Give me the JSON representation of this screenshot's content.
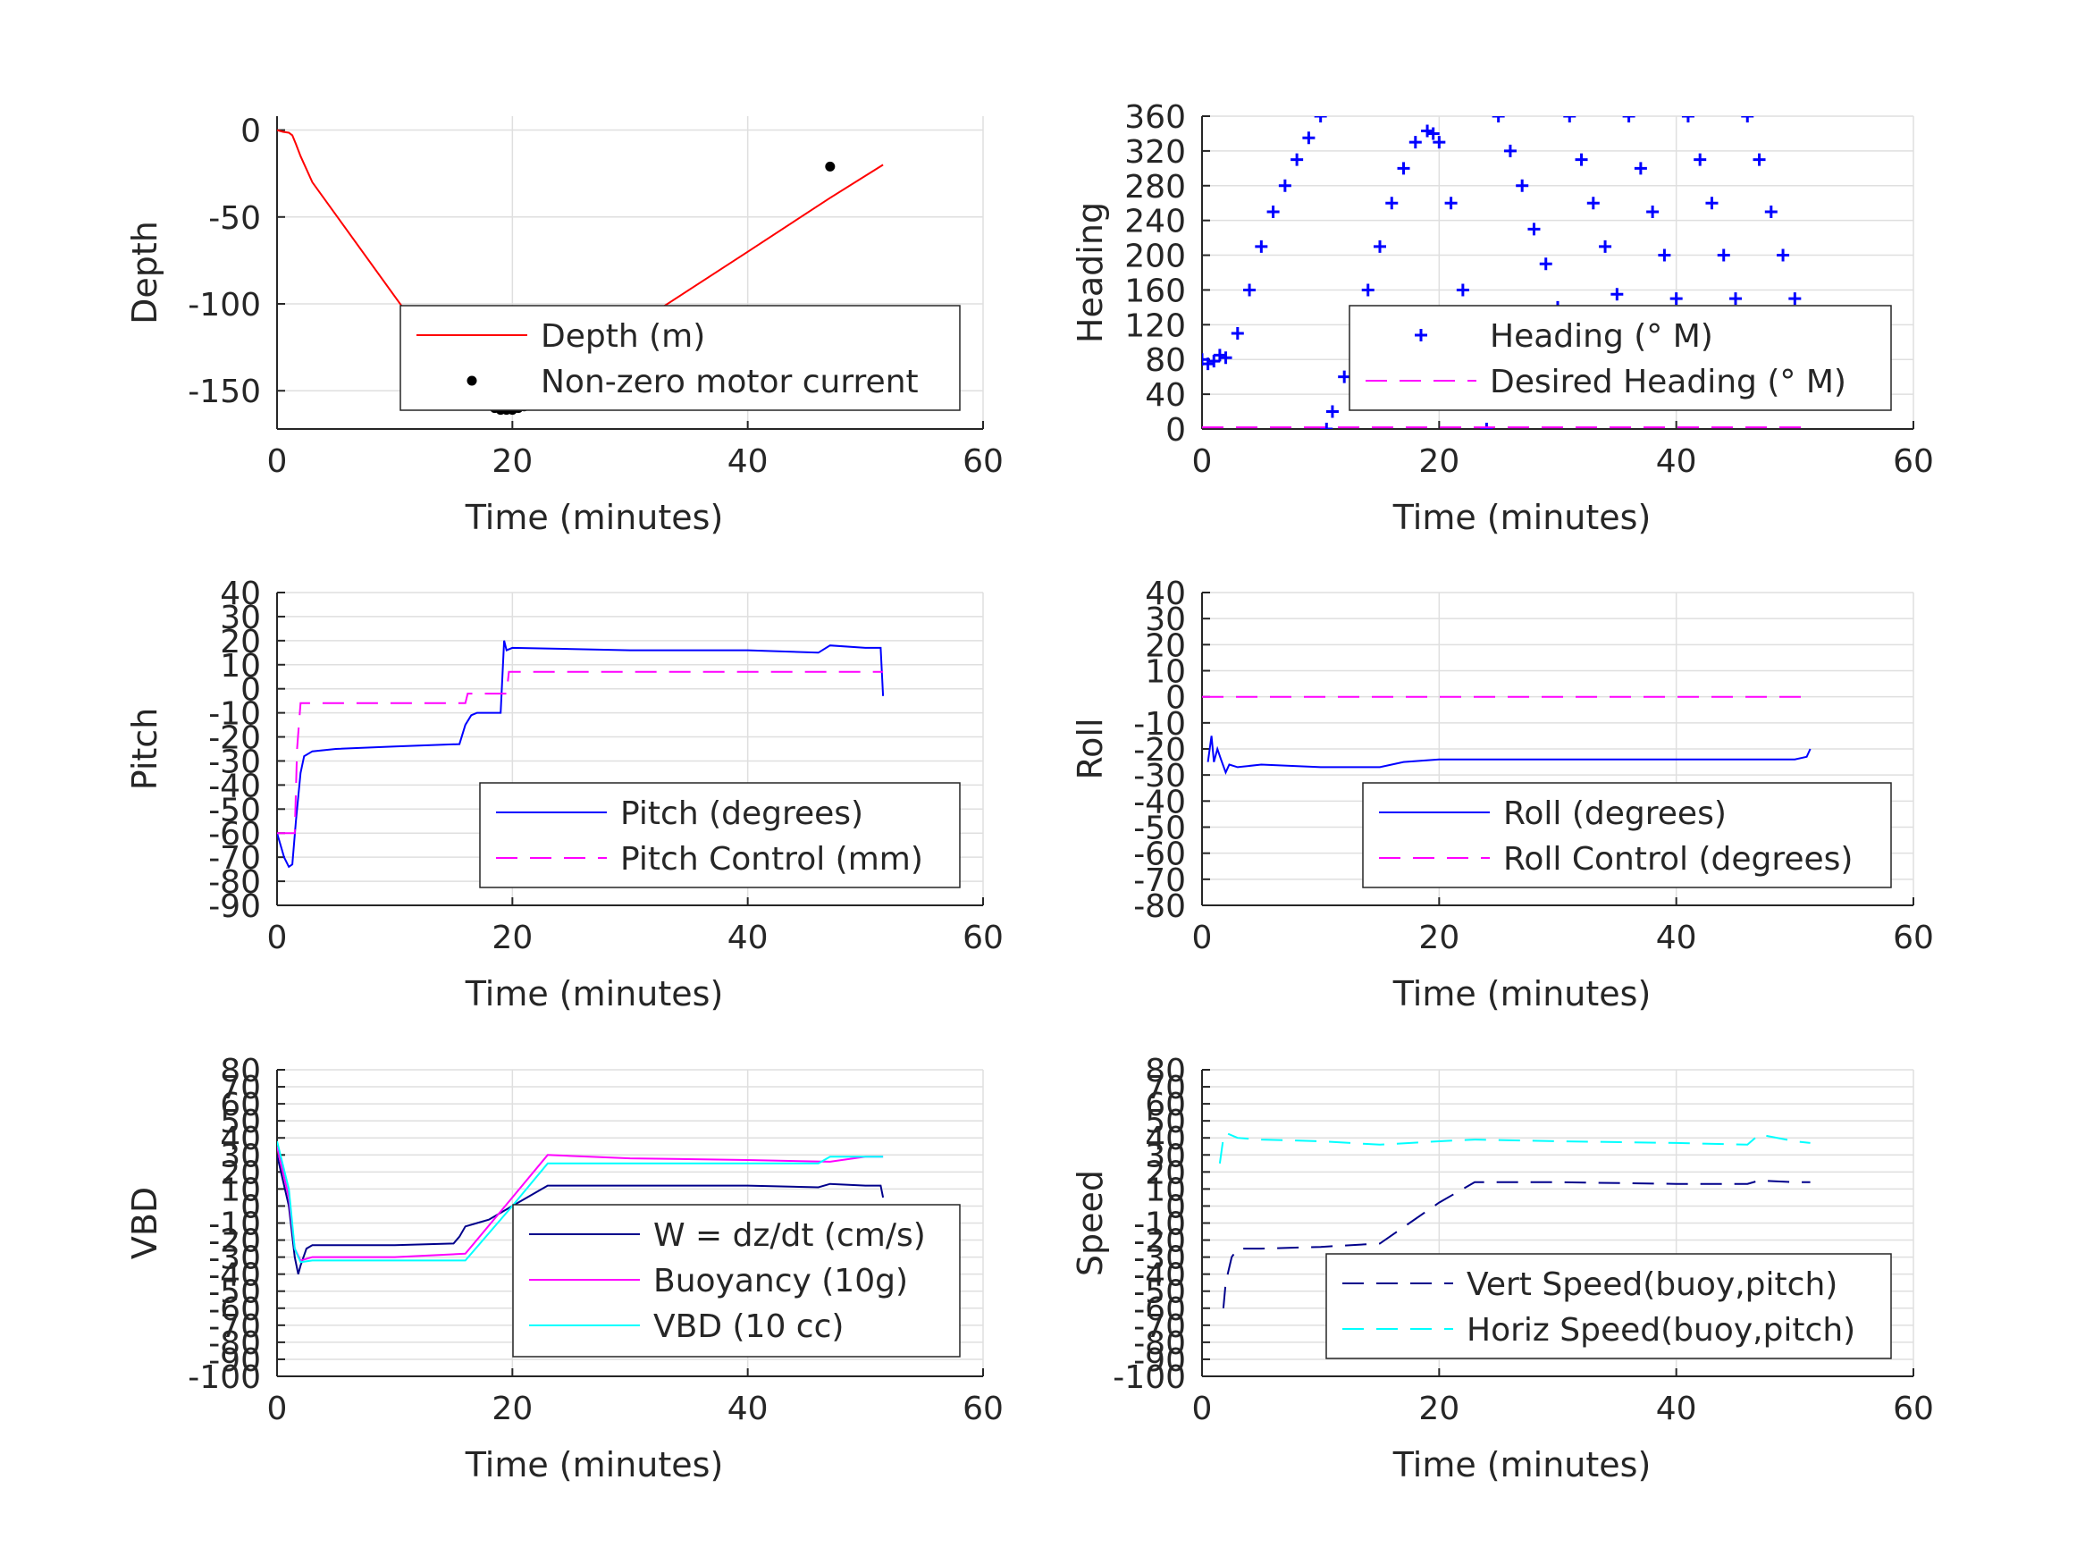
{
  "chart_data": [
    {
      "id": "depth",
      "type": "line",
      "xlabel": "Time (minutes)",
      "ylabel": "Depth",
      "xlim": [
        0,
        60
      ],
      "ylim": [
        -172,
        8
      ],
      "xticks": [
        0,
        20,
        40,
        60
      ],
      "yticks": [
        0,
        -50,
        -100,
        -150
      ],
      "grid": true,
      "legend_position": "center-right",
      "series": [
        {
          "name": "Depth (m)",
          "style": "line",
          "color": "#ff0000",
          "x": [
            0,
            0.5,
            1,
            1.3,
            1.6,
            2,
            3,
            16,
            17,
            18,
            19,
            20,
            21,
            22,
            23,
            30,
            40,
            47,
            51.5
          ],
          "y": [
            0,
            -1,
            -1.5,
            -3,
            -8,
            -15,
            -30,
            -152,
            -156,
            -160,
            -161,
            -161,
            -159,
            -155,
            -150,
            -114,
            -70,
            -39,
            -20
          ]
        },
        {
          "name": "Non-zero motor current",
          "style": "dots",
          "color": "#000000",
          "x": [
            16.5,
            16.8,
            17,
            17.5,
            18,
            18.5,
            19,
            19.5,
            20,
            20.5,
            21,
            21.5,
            22,
            22.5,
            47,
            16.6
          ],
          "y": [
            -153,
            -154,
            -155,
            -157,
            -158,
            -160,
            -161,
            -161,
            -161,
            -160,
            -159,
            -157,
            -155,
            -151,
            -21,
            -144
          ]
        }
      ]
    },
    {
      "id": "heading",
      "type": "scatter",
      "xlabel": "Time (minutes)",
      "ylabel": "Heading",
      "xlim": [
        0,
        60
      ],
      "ylim": [
        0,
        360
      ],
      "xticks": [
        0,
        20,
        40,
        60
      ],
      "yticks": [
        0,
        40,
        80,
        120,
        160,
        200,
        240,
        280,
        320,
        360
      ],
      "grid": true,
      "legend_position": "center-right",
      "series": [
        {
          "name": "Heading (° M)",
          "style": "plus",
          "color": "#0000ff",
          "x": [
            0,
            0.5,
            1,
            1.5,
            2,
            3,
            4,
            5,
            6,
            7,
            8,
            9,
            10,
            10.5,
            11,
            12,
            13,
            14,
            15,
            16,
            17,
            18,
            19,
            19.5,
            20,
            21,
            22,
            23,
            24,
            25,
            26,
            27,
            28,
            29,
            30,
            31,
            32,
            33,
            34,
            35,
            36,
            37,
            38,
            39,
            40,
            41,
            42,
            43,
            44,
            45,
            46,
            47,
            48,
            49,
            50,
            51
          ],
          "y": [
            80,
            75,
            78,
            85,
            82,
            110,
            160,
            210,
            250,
            280,
            310,
            335,
            360,
            0,
            20,
            60,
            110,
            160,
            210,
            260,
            300,
            330,
            343,
            340,
            330,
            260,
            160,
            60,
            0,
            360,
            320,
            280,
            230,
            190,
            140,
            360,
            310,
            260,
            210,
            155,
            360,
            300,
            250,
            200,
            150,
            360,
            310,
            260,
            200,
            150,
            360,
            310,
            250,
            200,
            150,
            120
          ]
        },
        {
          "name": "Desired Heading (° M)",
          "style": "dash",
          "color": "#ff00ff",
          "x": [
            0,
            51.5
          ],
          "y": [
            2,
            2
          ]
        }
      ]
    },
    {
      "id": "pitch",
      "type": "line",
      "xlabel": "Time (minutes)",
      "ylabel": "Pitch",
      "xlim": [
        0,
        60
      ],
      "ylim": [
        -90,
        40
      ],
      "xticks": [
        0,
        20,
        40,
        60
      ],
      "yticks": [
        40,
        30,
        20,
        10,
        0,
        -10,
        -20,
        -30,
        -40,
        -50,
        -60,
        -70,
        -80,
        -90
      ],
      "grid": true,
      "legend_position": "bottom-right",
      "series": [
        {
          "name": "Pitch (degrees)",
          "style": "line",
          "color": "#0000ff",
          "x": [
            0,
            0.6,
            1,
            1.3,
            1.6,
            2,
            2.3,
            3,
            5,
            10,
            15.5,
            16,
            16.5,
            17,
            19,
            19.3,
            19.5,
            20,
            30,
            40,
            46,
            47,
            50,
            51.3,
            51.5
          ],
          "y": [
            -60,
            -70,
            -74,
            -73,
            -55,
            -35,
            -28,
            -26,
            -25,
            -24,
            -23,
            -15,
            -11,
            -10,
            -10,
            20,
            16,
            17,
            16,
            16,
            15,
            18,
            17,
            17,
            -3
          ]
        },
        {
          "name": "Pitch Control (mm)",
          "style": "dash",
          "color": "#ff00ff",
          "x": [
            0,
            1.5,
            1.7,
            2,
            16,
            16.2,
            19.5,
            19.7,
            51.5
          ],
          "y": [
            -60,
            -60,
            -25,
            -6,
            -6,
            -2,
            -2,
            7,
            7
          ]
        }
      ]
    },
    {
      "id": "roll",
      "type": "line",
      "xlabel": "Time (minutes)",
      "ylabel": "Roll",
      "xlim": [
        0,
        60
      ],
      "ylim": [
        -80,
        40
      ],
      "xticks": [
        0,
        20,
        40,
        60
      ],
      "yticks": [
        40,
        30,
        20,
        10,
        0,
        -10,
        -20,
        -30,
        -40,
        -50,
        -60,
        -70,
        -80
      ],
      "grid": true,
      "legend_position": "bottom-right",
      "series": [
        {
          "name": "Roll (degrees)",
          "style": "line",
          "color": "#0000ff",
          "x": [
            0.5,
            0.8,
            1,
            1.3,
            1.6,
            2,
            2.3,
            3,
            5,
            10,
            15,
            17,
            20,
            30,
            40,
            50,
            51,
            51.3
          ],
          "y": [
            -25,
            -15,
            -25,
            -20,
            -24,
            -29,
            -26,
            -27,
            -26,
            -27,
            -27,
            -25,
            -24,
            -24,
            -24,
            -24,
            -23,
            -20
          ]
        },
        {
          "name": "Roll Control (degrees)",
          "style": "dash",
          "color": "#ff00ff",
          "x": [
            0,
            51.5
          ],
          "y": [
            0,
            0
          ]
        }
      ]
    },
    {
      "id": "vbd",
      "type": "line",
      "xlabel": "Time (minutes)",
      "ylabel": "VBD",
      "xlim": [
        0,
        60
      ],
      "ylim": [
        -100,
        80
      ],
      "xticks": [
        0,
        20,
        40,
        60
      ],
      "yticks": [
        80,
        70,
        60,
        50,
        40,
        30,
        20,
        10,
        0,
        -10,
        -20,
        -30,
        -40,
        -50,
        -60,
        -70,
        -80,
        -90,
        -100
      ],
      "grid": true,
      "legend_position": "bottom-right",
      "series": [
        {
          "name": "W = dz/dt (cm/s)",
          "style": "line",
          "color": "#00008b",
          "x": [
            0,
            1,
            1.5,
            1.8,
            2,
            2.5,
            3,
            10,
            15,
            15.5,
            16,
            17,
            18,
            20,
            23,
            30,
            40,
            46,
            47,
            50,
            51.3,
            51.5
          ],
          "y": [
            30,
            0,
            -30,
            -40,
            -35,
            -25,
            -23,
            -23,
            -22,
            -18,
            -12,
            -10,
            -8,
            0,
            12,
            12,
            12,
            11,
            13,
            12,
            12,
            5
          ]
        },
        {
          "name": "Buoyancy (10g)",
          "style": "line",
          "color": "#ff00ff",
          "x": [
            0,
            1,
            1.5,
            2,
            3,
            10,
            16,
            20,
            23,
            30,
            40,
            47,
            50,
            51.5
          ],
          "y": [
            35,
            5,
            -25,
            -32,
            -30,
            -30,
            -28,
            5,
            30,
            28,
            27,
            26,
            29,
            29
          ]
        },
        {
          "name": "VBD (10 cc)",
          "style": "line",
          "color": "#00ffff",
          "x": [
            0,
            1,
            1.5,
            2,
            3,
            10,
            16,
            20,
            23,
            30,
            40,
            46,
            47,
            50,
            51.5
          ],
          "y": [
            38,
            10,
            -25,
            -33,
            -32,
            -32,
            -32,
            0,
            25,
            25,
            25,
            25,
            29,
            29,
            29
          ]
        }
      ]
    },
    {
      "id": "speed",
      "type": "line",
      "xlabel": "Time (minutes)",
      "ylabel": "Speed",
      "xlim": [
        0,
        60
      ],
      "ylim": [
        -100,
        80
      ],
      "xticks": [
        0,
        20,
        40,
        60
      ],
      "yticks": [
        80,
        70,
        60,
        50,
        40,
        30,
        20,
        10,
        0,
        -10,
        -20,
        -30,
        -40,
        -50,
        -60,
        -70,
        -80,
        -90,
        -100
      ],
      "grid": true,
      "legend_position": "bottom-right",
      "series": [
        {
          "name": "Vert Speed(buoy,pitch)",
          "style": "dash",
          "color": "#00008b",
          "x": [
            1.8,
            2,
            2.5,
            3,
            5,
            10,
            15,
            20,
            23,
            30,
            40,
            46,
            47,
            50,
            51.3
          ],
          "y": [
            -60,
            -45,
            -30,
            -25,
            -25,
            -24,
            -22,
            2,
            14,
            14,
            13,
            13,
            15,
            14,
            14
          ]
        },
        {
          "name": "Horiz Speed(buoy,pitch)",
          "style": "dash",
          "color": "#00ffff",
          "x": [
            1.5,
            1.8,
            2,
            3,
            5,
            10,
            15,
            20,
            23,
            30,
            40,
            46,
            47,
            50,
            51.3
          ],
          "y": [
            25,
            40,
            43,
            40,
            39,
            38,
            36,
            38,
            39,
            38,
            37,
            36,
            42,
            38,
            37
          ]
        }
      ]
    }
  ]
}
